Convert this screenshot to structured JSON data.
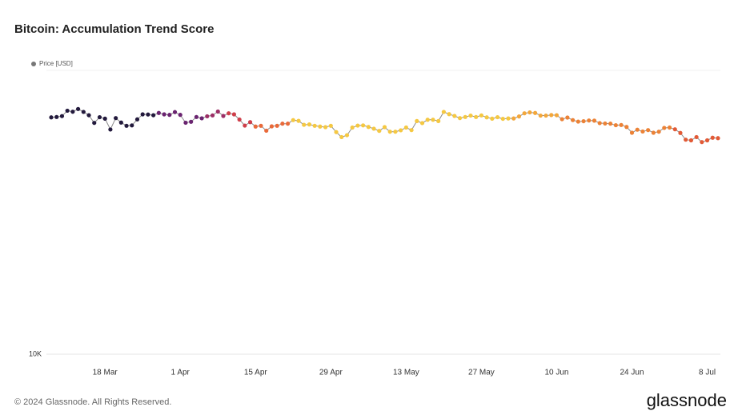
{
  "chart_data": {
    "type": "line",
    "title": "Bitcoin: Accumulation Trend Score",
    "source": "© 2024 Glassnode. All Rights Reserved.",
    "brand": "glassnode",
    "log_scale": true,
    "ylim": [
      10000,
      100000
    ],
    "yticks": [
      {
        "value": 10000,
        "label": "10K"
      }
    ],
    "categories": [
      null,
      null,
      null,
      null,
      null,
      null,
      null,
      null,
      null,
      null,
      "18 Mar",
      null,
      null,
      null,
      null,
      null,
      null,
      null,
      null,
      null,
      null,
      null,
      null,
      null,
      "1 Apr",
      null,
      null,
      null,
      null,
      null,
      null,
      null,
      null,
      null,
      null,
      null,
      null,
      null,
      "15 Apr",
      null,
      null,
      null,
      null,
      null,
      null,
      null,
      null,
      null,
      null,
      null,
      null,
      null,
      "29 Apr",
      null,
      null,
      null,
      null,
      null,
      null,
      null,
      null,
      null,
      null,
      null,
      null,
      null,
      "13 May",
      null,
      null,
      null,
      null,
      null,
      null,
      null,
      null,
      null,
      null,
      null,
      null,
      null,
      "27 May",
      null,
      null,
      null,
      null,
      null,
      null,
      null,
      null,
      null,
      null,
      null,
      null,
      null,
      "10 Jun",
      null,
      null,
      null,
      null,
      null,
      null,
      null,
      null,
      null,
      null,
      null,
      null,
      null,
      "24 Jun",
      null,
      null,
      null,
      null,
      null,
      null,
      null,
      null,
      null,
      null,
      null,
      null,
      null,
      "8 Jul",
      null,
      null
    ],
    "series": [
      {
        "name": "Price [USD]",
        "color": "#777777",
        "line_color": "#8a8a8a",
        "values": [
          68300,
          68500,
          69000,
          72100,
          71500,
          73100,
          71400,
          69500,
          65300,
          68400,
          67600,
          61900,
          67900,
          65500,
          63800,
          64000,
          67200,
          70000,
          69900,
          69500,
          70800,
          70000,
          69700,
          71300,
          69700,
          65400,
          65900,
          68500,
          67800,
          68900,
          69400,
          71600,
          69100,
          70600,
          70000,
          67100,
          63900,
          65700,
          63400,
          63800,
          61300,
          63500,
          63800,
          64900,
          64900,
          66800,
          66400,
          64300,
          64500,
          63800,
          63400,
          63100,
          63800,
          60600,
          58200,
          59100,
          62900,
          63900,
          64000,
          63200,
          62300,
          61200,
          63100,
          60800,
          60800,
          61500,
          62900,
          61600,
          66300,
          65200,
          67000,
          67000,
          66300,
          71400,
          70100,
          69100,
          67900,
          68500,
          69300,
          68500,
          69400,
          68300,
          67600,
          68400,
          67500,
          67700,
          67700,
          68800,
          70600,
          71100,
          70800,
          69300,
          69300,
          69600,
          69500,
          67300,
          68200,
          66800,
          66000,
          66200,
          66600,
          66500,
          65200,
          65000,
          64900,
          64100,
          64200,
          63200,
          60300,
          61800,
          60900,
          61600,
          60300,
          60800,
          62700,
          62900,
          62000,
          60200,
          57000,
          56700,
          58200,
          55900,
          56700,
          57900,
          57700
        ],
        "point_colors": [
          "#231a3d",
          "#231a3d",
          "#231a3d",
          "#231a3d",
          "#231a3d",
          "#231a3d",
          "#231a3d",
          "#231a3d",
          "#231a3d",
          "#231a3d",
          "#231a3d",
          "#231a3d",
          "#231a3d",
          "#231a3d",
          "#231a3d",
          "#231a3d",
          "#231a3d",
          "#231a3d",
          "#231a3d",
          "#231a3d",
          "#6a2470",
          "#6a2470",
          "#6a2470",
          "#6a2470",
          "#6a2470",
          "#6a2470",
          "#6a2470",
          "#6a2470",
          "#6a2470",
          "#9c2f66",
          "#9c2f66",
          "#9c2f66",
          "#9c2f66",
          "#cf3f4a",
          "#cf3f4a",
          "#cf3f4a",
          "#cf3f4a",
          "#cf3f4a",
          "#e96a3a",
          "#e96a3a",
          "#e96a3a",
          "#e96a3a",
          "#e96a3a",
          "#e96a3a",
          "#e96a3a",
          "#f5c842",
          "#f5c842",
          "#f5c842",
          "#f5c842",
          "#f5c842",
          "#f5c842",
          "#f5c842",
          "#f5c842",
          "#f5c842",
          "#f5c842",
          "#f5c842",
          "#f5c842",
          "#f5c842",
          "#f5c842",
          "#f5c842",
          "#f5c842",
          "#f5c842",
          "#f5c842",
          "#f5c842",
          "#f5c842",
          "#f5c842",
          "#f5c842",
          "#f5c842",
          "#f5c842",
          "#f5c842",
          "#f5c842",
          "#f5c842",
          "#f5c842",
          "#f5c842",
          "#f5c842",
          "#f5c842",
          "#f5c842",
          "#f5c842",
          "#f5c842",
          "#f5c842",
          "#f5c842",
          "#f5c842",
          "#f5c842",
          "#f5c842",
          "#f5c842",
          "#f5c842",
          "#f3a73b",
          "#f3a73b",
          "#f3a73b",
          "#f3a73b",
          "#f3a73b",
          "#f3a73b",
          "#f3a73b",
          "#f3a73b",
          "#f3a73b",
          "#ec8236",
          "#ec8236",
          "#ec8236",
          "#ec8236",
          "#ec8236",
          "#ec8236",
          "#ec8236",
          "#ec8236",
          "#ec8236",
          "#ec8236",
          "#ec8236",
          "#ec8236",
          "#ec8236",
          "#ec8236",
          "#ec8236",
          "#ec8236",
          "#ec8236",
          "#ec8236",
          "#ec8236",
          "#ec8236",
          "#ec8236",
          "#e25a36",
          "#e25a36",
          "#e25a36",
          "#e25a36",
          "#e25a36",
          "#e25a36",
          "#e25a36",
          "#e25a36",
          "#e25a36"
        ]
      }
    ]
  }
}
